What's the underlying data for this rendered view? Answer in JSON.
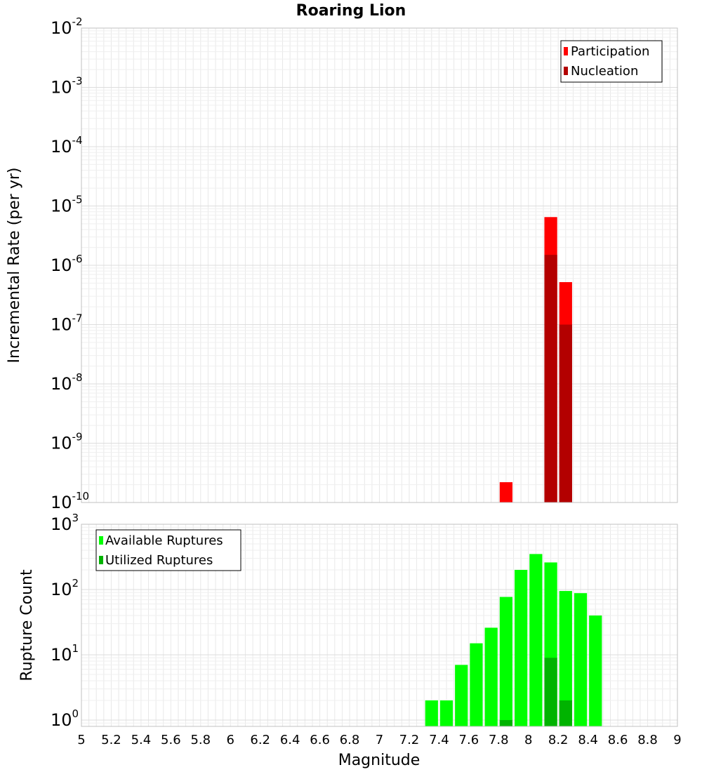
{
  "title": "Roaring Lion",
  "xlabel": "Magnitude",
  "colors": {
    "participation": "#ff0000",
    "nucleation": "#b30000",
    "available": "#00ff00",
    "utilized": "#00b300",
    "grid": "#e8e8e8",
    "frame": "#c0c0c0"
  },
  "chart_data": [
    {
      "type": "bar",
      "panel": "top",
      "ylabel": "Incremental Rate (per yr)",
      "yscale": "log",
      "ylim": [
        1e-10,
        0.01
      ],
      "xlim": [
        5,
        9
      ],
      "bar_width": 0.1,
      "y_tick_exponents": [
        "-2",
        "-3",
        "-4",
        "-5",
        "-6",
        "-7",
        "-8",
        "-9",
        "-10"
      ],
      "legend": {
        "position": "top-right",
        "entries": [
          "Participation",
          "Nucleation"
        ]
      },
      "series": [
        {
          "name": "Participation",
          "x": [
            7.85,
            8.15,
            8.25
          ],
          "values": [
            2.2e-10,
            6.5e-06,
            5.2e-07
          ]
        },
        {
          "name": "Nucleation",
          "x": [
            8.15,
            8.25
          ],
          "values": [
            1.5e-06,
            1e-07
          ]
        }
      ]
    },
    {
      "type": "bar",
      "panel": "bottom",
      "ylabel": "Rupture Count",
      "yscale": "log",
      "ylim": [
        0.8,
        1000
      ],
      "xlim": [
        5,
        9
      ],
      "bar_width": 0.1,
      "y_tick_exponents": [
        "3",
        "2",
        "1",
        "0"
      ],
      "legend": {
        "position": "top-left",
        "entries": [
          "Available Ruptures",
          "Utilized Ruptures"
        ]
      },
      "series": [
        {
          "name": "Available Ruptures",
          "x": [
            7.35,
            7.45,
            7.55,
            7.65,
            7.75,
            7.85,
            7.95,
            8.05,
            8.15,
            8.25,
            8.35,
            8.45
          ],
          "values": [
            2,
            2,
            7,
            15,
            26,
            77,
            200,
            350,
            260,
            95,
            88,
            40
          ]
        },
        {
          "name": "Utilized Ruptures",
          "x": [
            7.85,
            8.15,
            8.25
          ],
          "values": [
            1,
            9,
            2
          ]
        }
      ],
      "x_ticks": [
        "5",
        "5.2",
        "5.4",
        "5.6",
        "5.8",
        "6",
        "6.2",
        "6.4",
        "6.6",
        "6.8",
        "7",
        "7.2",
        "7.4",
        "7.6",
        "7.8",
        "8",
        "8.2",
        "8.4",
        "8.6",
        "8.8",
        "9"
      ]
    }
  ]
}
